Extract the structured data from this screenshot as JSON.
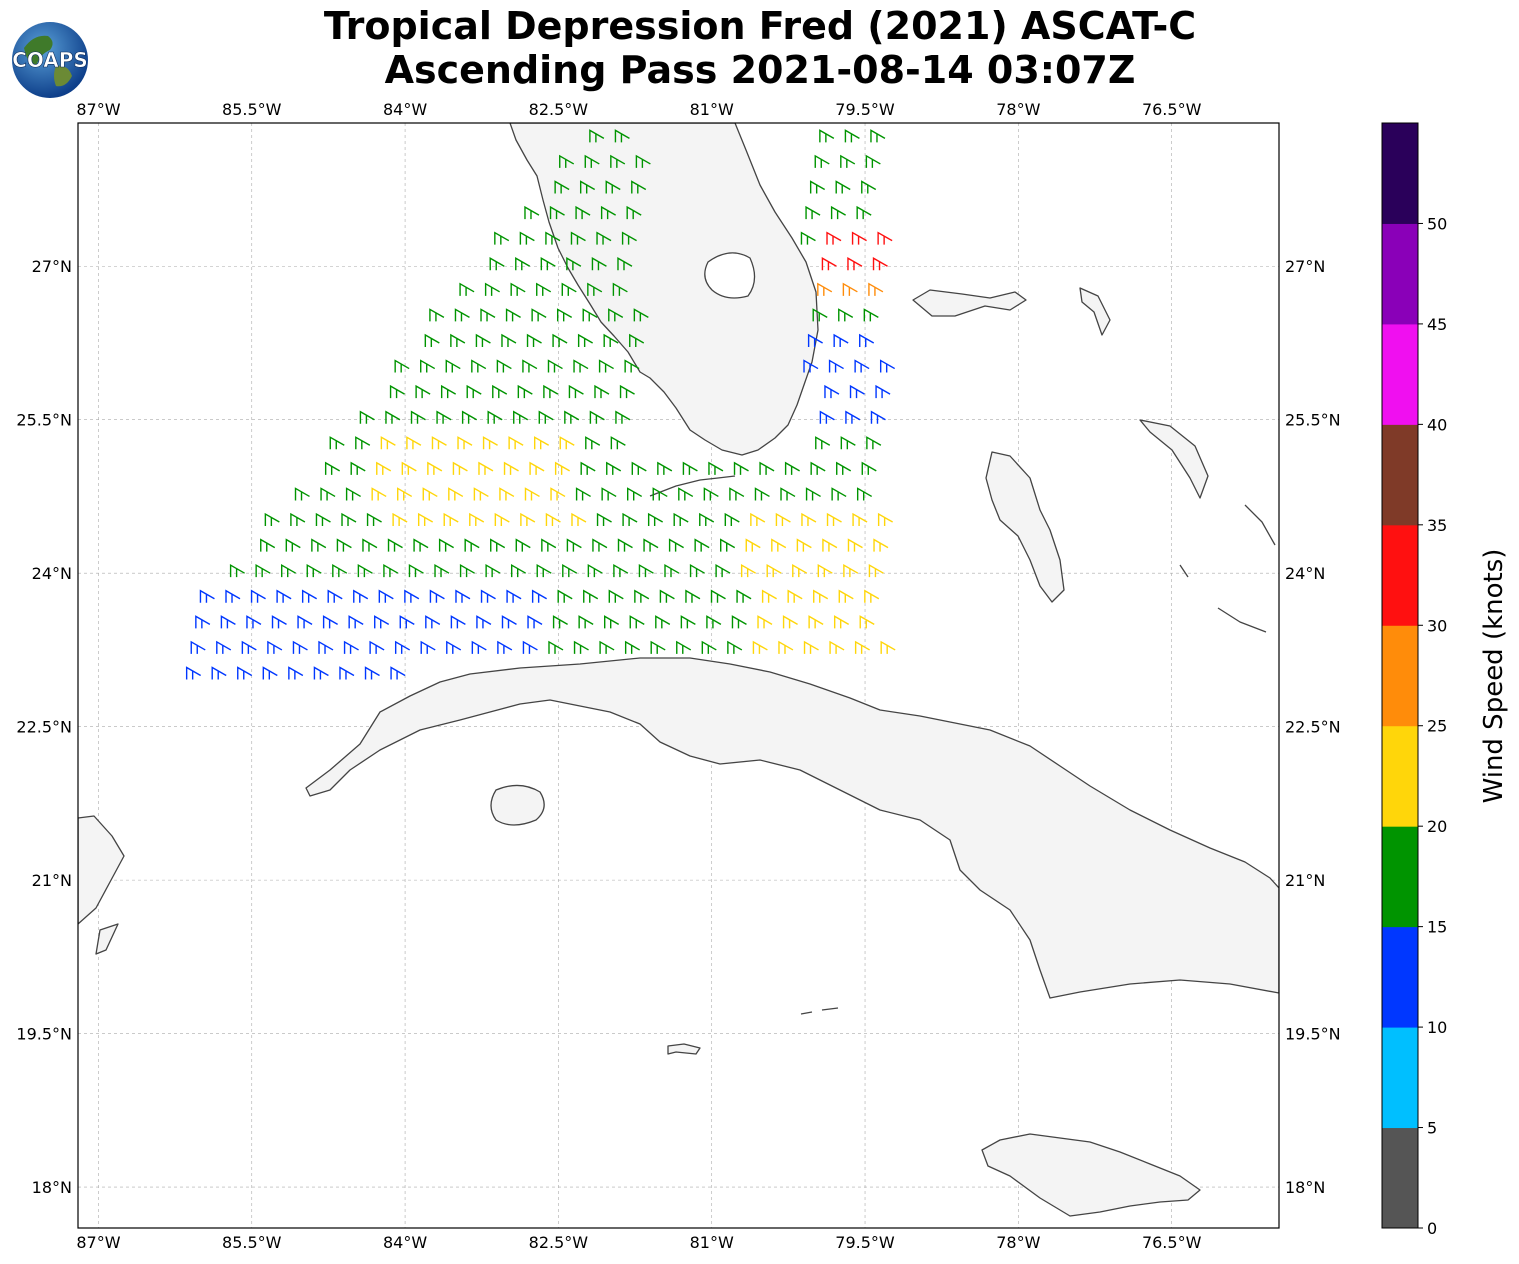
{
  "header": {
    "title_line1": "Tropical Depression Fred (2021) ASCAT-C",
    "title_line2": "Ascending Pass 2021-08-14 03:07Z",
    "logo_text": "COAPS"
  },
  "map": {
    "extent": {
      "lon_min": -87.2,
      "lon_max": -75.45,
      "lat_min": 17.6,
      "lat_max": 28.4
    },
    "lon_ticks": [
      -87,
      -85.5,
      -84,
      -82.5,
      -81,
      -79.5,
      -78,
      -76.5
    ],
    "lon_labels": [
      "87°W",
      "85.5°W",
      "84°W",
      "82.5°W",
      "81°W",
      "79.5°W",
      "78°W",
      "76.5°W"
    ],
    "lat_ticks": [
      18,
      19.5,
      21,
      22.5,
      24,
      25.5,
      27
    ],
    "lat_labels": [
      "18°N",
      "19.5°N",
      "21°N",
      "22.5°N",
      "24°N",
      "25.5°N",
      "27°N"
    ],
    "gridlines": true
  },
  "colorbar": {
    "label": "Wind Speed (knots)",
    "ticks": [
      "0",
      "5",
      "10",
      "15",
      "20",
      "25",
      "30",
      "35",
      "40",
      "45",
      "50"
    ],
    "colors": [
      "#555555",
      "#00bfff",
      "#0037ff",
      "#009400",
      "#ffd60a",
      "#ff8c0a",
      "#ff1010",
      "#7f3a28",
      "#f00ff0",
      "#8a00b8",
      "#2a005a"
    ]
  }
}
